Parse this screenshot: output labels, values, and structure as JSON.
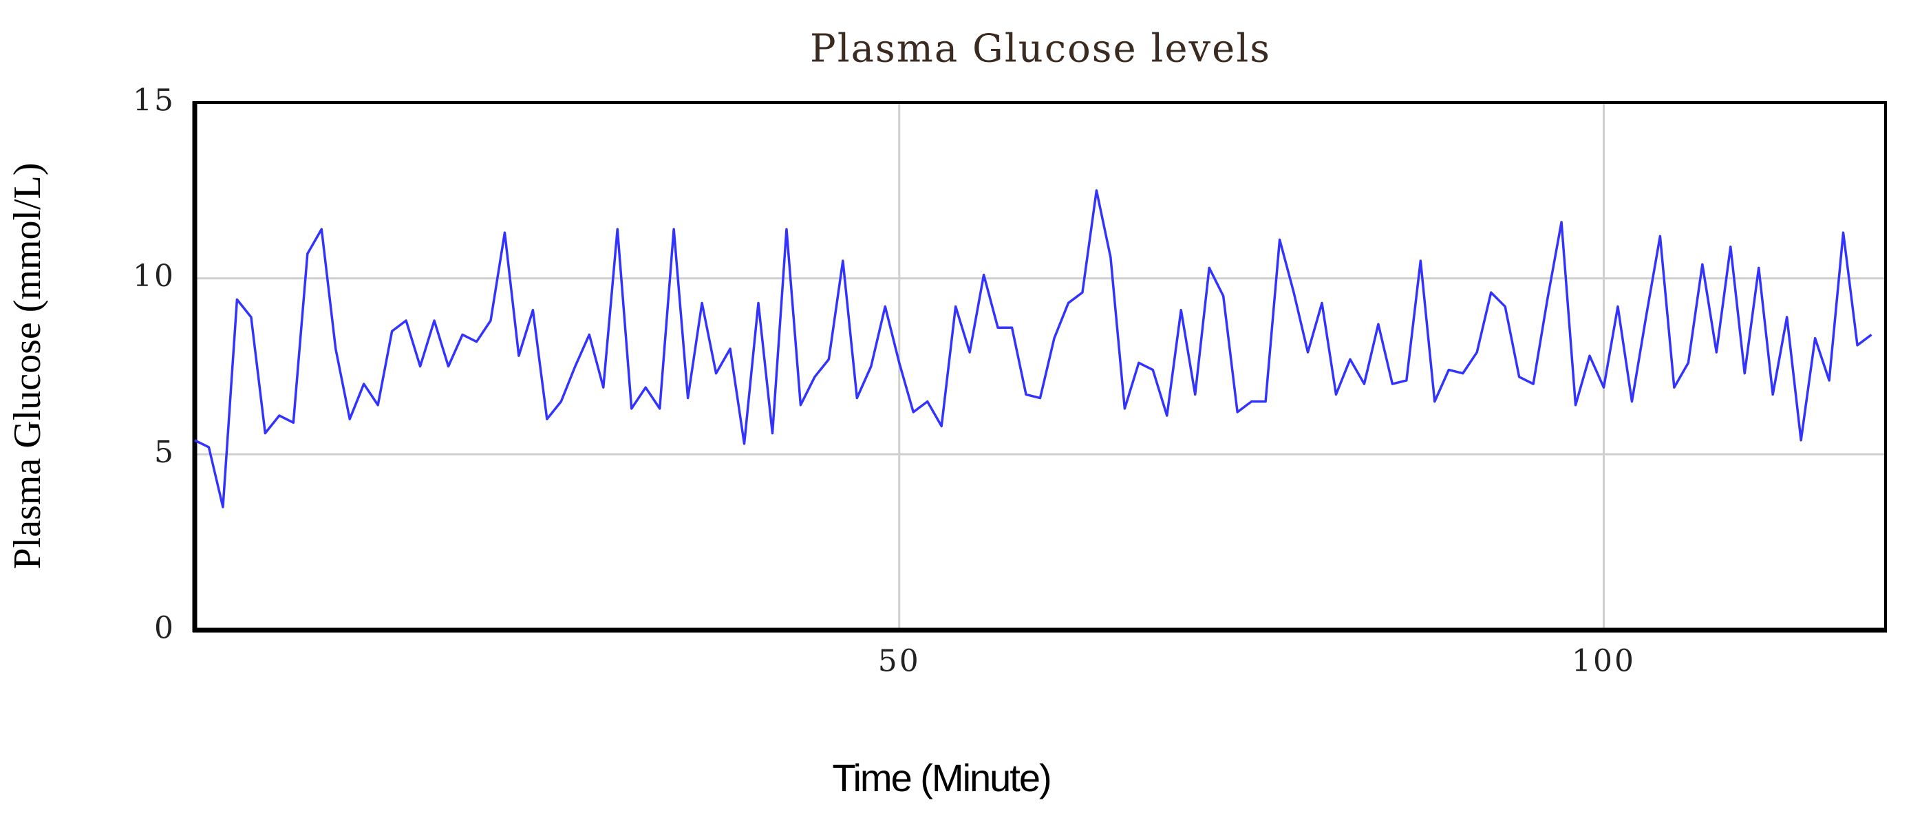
{
  "chart_data": {
    "type": "line",
    "title": "Plasma Glucose levels",
    "x_label": "Time (Minute)",
    "y_label": "Plasma Glucose (mmol/L)",
    "x": [
      0,
      1,
      2,
      3,
      4,
      5,
      6,
      7,
      8,
      9,
      10,
      11,
      12,
      13,
      14,
      15,
      16,
      17,
      18,
      19,
      20,
      21,
      22,
      23,
      24,
      25,
      26,
      27,
      28,
      29,
      30,
      31,
      32,
      33,
      34,
      35,
      36,
      37,
      38,
      39,
      40,
      41,
      42,
      43,
      44,
      45,
      46,
      47,
      48,
      49,
      50,
      51,
      52,
      53,
      54,
      55,
      56,
      57,
      58,
      59,
      60,
      61,
      62,
      63,
      64,
      65,
      66,
      67,
      68,
      69,
      70,
      71,
      72,
      73,
      74,
      75,
      76,
      77,
      78,
      79,
      80,
      81,
      82,
      83,
      84,
      85,
      86,
      87,
      88,
      89,
      90,
      91,
      92,
      93,
      94,
      95,
      96,
      97,
      98,
      99,
      100,
      101,
      102,
      103,
      104,
      105,
      106,
      107,
      108,
      109,
      110,
      111,
      112,
      113,
      114,
      115,
      116,
      117,
      118,
      119
    ],
    "series": [
      {
        "name": "Plasma Glucose",
        "color": "#3333ff",
        "values": [
          5.4,
          5.2,
          3.5,
          9.4,
          8.9,
          5.6,
          6.1,
          5.9,
          10.7,
          11.4,
          8.0,
          6.0,
          7.0,
          6.4,
          8.5,
          8.8,
          7.5,
          8.8,
          7.5,
          8.4,
          8.2,
          8.8,
          11.3,
          7.8,
          9.1,
          6.0,
          6.5,
          7.5,
          8.4,
          6.9,
          11.4,
          6.3,
          6.9,
          6.3,
          11.4,
          6.6,
          9.3,
          7.3,
          8.0,
          5.3,
          9.3,
          5.6,
          11.4,
          6.4,
          7.2,
          7.7,
          10.5,
          6.6,
          7.5,
          9.2,
          7.6,
          6.2,
          6.5,
          5.8,
          9.2,
          7.9,
          10.1,
          8.6,
          8.6,
          6.7,
          6.6,
          8.3,
          9.3,
          9.6,
          12.5,
          10.6,
          6.3,
          7.6,
          7.4,
          6.1,
          9.1,
          6.7,
          10.3,
          9.5,
          6.2,
          6.5,
          6.5,
          11.1,
          9.6,
          7.9,
          9.3,
          6.7,
          7.7,
          7.0,
          8.7,
          7.0,
          7.1,
          10.5,
          6.5,
          7.4,
          7.3,
          7.9,
          9.6,
          9.2,
          7.2,
          7.0,
          9.4,
          11.6,
          6.4,
          7.8,
          6.9,
          9.2,
          6.5,
          8.9,
          11.2,
          6.9,
          7.6,
          10.4,
          7.9,
          10.9,
          7.3,
          10.3,
          6.7,
          8.9,
          5.4,
          8.3,
          7.1,
          11.3,
          8.1,
          8.4
        ]
      }
    ],
    "xlim": [
      0,
      120
    ],
    "xticks": [
      50,
      100
    ],
    "ylim": [
      0,
      15
    ],
    "yticks": [
      0,
      5,
      10,
      15
    ],
    "grid": true
  }
}
